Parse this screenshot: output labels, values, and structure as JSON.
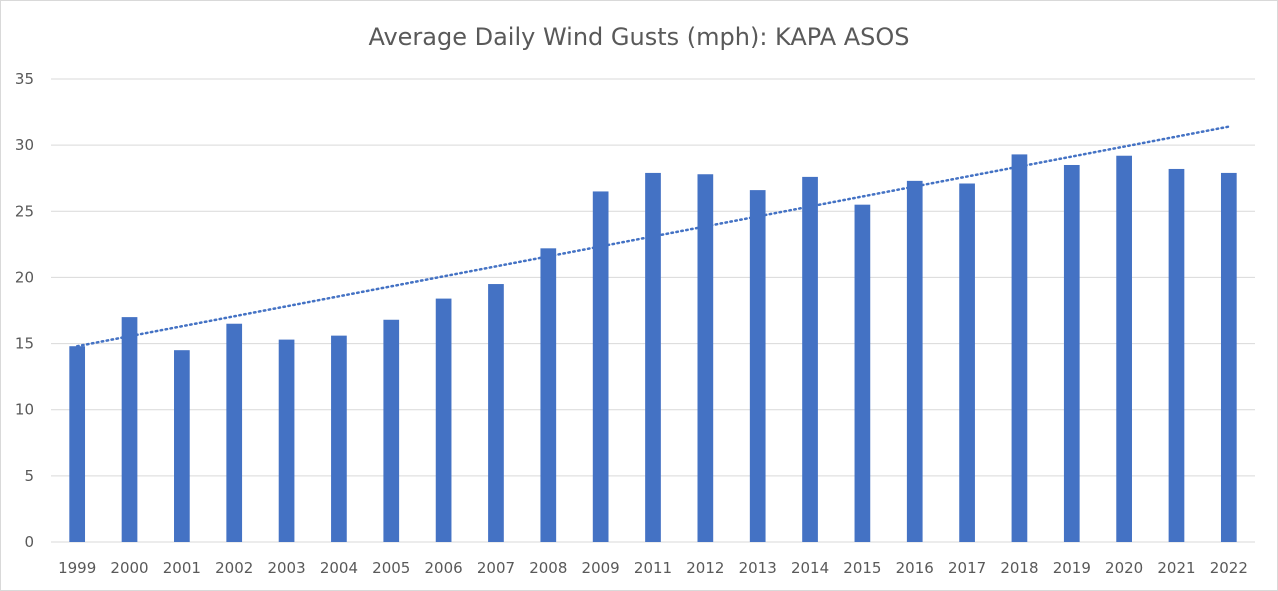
{
  "chart_data": {
    "type": "bar",
    "title": "Average Daily Wind Gusts (mph): KAPA ASOS",
    "xlabel": "",
    "ylabel": "",
    "categories": [
      "1999",
      "2000",
      "2001",
      "2002",
      "2003",
      "2004",
      "2005",
      "2006",
      "2007",
      "2008",
      "2009",
      "2011",
      "2012",
      "2013",
      "2014",
      "2015",
      "2016",
      "2017",
      "2018",
      "2019",
      "2020",
      "2021",
      "2022"
    ],
    "values": [
      14.8,
      17.0,
      14.5,
      16.5,
      15.3,
      15.6,
      16.8,
      18.4,
      19.5,
      22.2,
      26.5,
      27.9,
      27.8,
      26.6,
      27.6,
      25.5,
      27.3,
      27.1,
      29.3,
      28.5,
      29.2,
      28.2,
      27.9
    ],
    "ylim": [
      0,
      35
    ],
    "yticks": [
      0,
      5,
      10,
      15,
      20,
      25,
      30,
      35
    ],
    "grid": true,
    "legend": "none",
    "bar_color": "#4472c4",
    "trendline": {
      "type": "linear",
      "style": "dotted",
      "color": "#4472c4",
      "start": 14.8,
      "end": 31.4
    }
  }
}
